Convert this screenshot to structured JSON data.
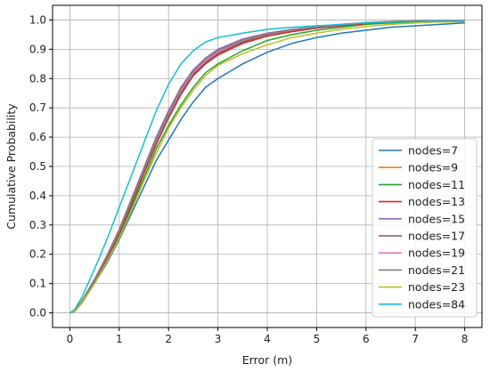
{
  "chart_data": {
    "type": "line",
    "xlabel": "Error (m)",
    "ylabel": "Cumulative Probability",
    "xlim": [
      -0.35,
      8.35
    ],
    "ylim": [
      -0.05,
      1.05
    ],
    "xticks": [
      0,
      1,
      2,
      3,
      4,
      5,
      6,
      7,
      8
    ],
    "yticks": [
      0.0,
      0.1,
      0.2,
      0.3,
      0.4,
      0.5,
      0.6,
      0.7,
      0.8,
      0.9,
      1.0
    ],
    "xtick_labels": [
      "0",
      "1",
      "2",
      "3",
      "4",
      "5",
      "6",
      "7",
      "8"
    ],
    "ytick_labels": [
      "0.0",
      "0.1",
      "0.2",
      "0.3",
      "0.4",
      "0.5",
      "0.6",
      "0.7",
      "0.8",
      "0.9",
      "1.0"
    ],
    "grid": true,
    "legend_position": "lower-right",
    "x": [
      0,
      0.1,
      0.25,
      0.5,
      0.75,
      1.0,
      1.25,
      1.5,
      1.75,
      2.0,
      2.25,
      2.5,
      2.75,
      3.0,
      3.5,
      4.0,
      4.5,
      5.0,
      5.5,
      6.0,
      6.5,
      7.0,
      7.5,
      8.0
    ],
    "series": [
      {
        "name": "nodes=7",
        "color": "#1f77b4",
        "values": [
          0,
          0.005,
          0.035,
          0.1,
          0.17,
          0.25,
          0.34,
          0.43,
          0.52,
          0.59,
          0.66,
          0.72,
          0.77,
          0.8,
          0.85,
          0.89,
          0.92,
          0.94,
          0.955,
          0.965,
          0.975,
          0.98,
          0.985,
          0.99
        ]
      },
      {
        "name": "nodes=9",
        "color": "#ff7f0e",
        "values": [
          0,
          0.008,
          0.04,
          0.11,
          0.19,
          0.28,
          0.38,
          0.49,
          0.59,
          0.68,
          0.76,
          0.82,
          0.86,
          0.89,
          0.925,
          0.95,
          0.965,
          0.975,
          0.983,
          0.99,
          0.995,
          0.997,
          0.998,
          0.998
        ]
      },
      {
        "name": "nodes=11",
        "color": "#2ca02c",
        "values": [
          0,
          0.007,
          0.038,
          0.105,
          0.18,
          0.26,
          0.36,
          0.46,
          0.56,
          0.64,
          0.71,
          0.77,
          0.82,
          0.85,
          0.895,
          0.93,
          0.95,
          0.965,
          0.975,
          0.985,
          0.99,
          0.993,
          0.995,
          0.996
        ]
      },
      {
        "name": "nodes=13",
        "color": "#d62728",
        "values": [
          0,
          0.008,
          0.04,
          0.11,
          0.185,
          0.27,
          0.37,
          0.475,
          0.575,
          0.665,
          0.745,
          0.81,
          0.85,
          0.88,
          0.92,
          0.945,
          0.96,
          0.972,
          0.98,
          0.988,
          0.993,
          0.996,
          0.997,
          0.997
        ]
      },
      {
        "name": "nodes=15",
        "color": "#9467bd",
        "values": [
          0,
          0.009,
          0.042,
          0.115,
          0.195,
          0.285,
          0.39,
          0.495,
          0.6,
          0.69,
          0.77,
          0.83,
          0.87,
          0.9,
          0.935,
          0.955,
          0.968,
          0.977,
          0.985,
          0.991,
          0.995,
          0.997,
          0.998,
          0.998
        ]
      },
      {
        "name": "nodes=17",
        "color": "#8c564b",
        "values": [
          0,
          0.008,
          0.04,
          0.11,
          0.19,
          0.275,
          0.375,
          0.48,
          0.58,
          0.67,
          0.75,
          0.815,
          0.855,
          0.885,
          0.925,
          0.95,
          0.965,
          0.975,
          0.983,
          0.99,
          0.994,
          0.996,
          0.997,
          0.997
        ]
      },
      {
        "name": "nodes=19",
        "color": "#e377c2",
        "values": [
          0,
          0.009,
          0.042,
          0.113,
          0.192,
          0.28,
          0.385,
          0.49,
          0.59,
          0.68,
          0.76,
          0.82,
          0.86,
          0.89,
          0.93,
          0.952,
          0.966,
          0.976,
          0.984,
          0.99,
          0.994,
          0.996,
          0.997,
          0.997
        ]
      },
      {
        "name": "nodes=21",
        "color": "#7f7f7f",
        "values": [
          0,
          0.009,
          0.042,
          0.114,
          0.194,
          0.283,
          0.388,
          0.493,
          0.595,
          0.685,
          0.765,
          0.826,
          0.866,
          0.895,
          0.932,
          0.953,
          0.967,
          0.976,
          0.984,
          0.99,
          0.994,
          0.996,
          0.997,
          0.997
        ]
      },
      {
        "name": "nodes=23",
        "color": "#bcbd22",
        "values": [
          0,
          0.006,
          0.036,
          0.1,
          0.175,
          0.255,
          0.35,
          0.45,
          0.545,
          0.63,
          0.7,
          0.76,
          0.81,
          0.845,
          0.885,
          0.915,
          0.94,
          0.955,
          0.968,
          0.978,
          0.985,
          0.99,
          0.993,
          0.994
        ]
      },
      {
        "name": "nodes=84",
        "color": "#17becf",
        "values": [
          0,
          0.012,
          0.055,
          0.15,
          0.25,
          0.36,
          0.47,
          0.58,
          0.69,
          0.78,
          0.85,
          0.895,
          0.925,
          0.94,
          0.955,
          0.968,
          0.975,
          0.98,
          0.985,
          0.99,
          0.993,
          0.995,
          0.996,
          0.996
        ]
      }
    ]
  }
}
